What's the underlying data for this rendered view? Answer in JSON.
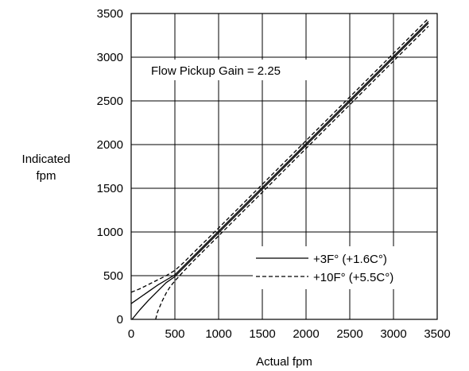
{
  "chart_data": {
    "type": "line",
    "title": "",
    "annotation": "Flow Pickup Gain = 2.25",
    "xlabel": "Actual fpm",
    "ylabel": [
      "Indicated",
      "fpm"
    ],
    "xlim": [
      0,
      3500
    ],
    "ylim": [
      0,
      3500
    ],
    "xticks": [
      0,
      500,
      1000,
      1500,
      2000,
      2500,
      3000,
      3500
    ],
    "yticks": [
      0,
      500,
      1000,
      1500,
      2000,
      2500,
      3000,
      3500
    ],
    "grid": true,
    "legend_position": "bottom-right",
    "series": [
      {
        "name": "+3F° (+1.6C°)",
        "style": "solid",
        "branch": "upper",
        "x": [
          0,
          100,
          200,
          300,
          400,
          500,
          600,
          1000,
          1500,
          2000,
          2500,
          3000,
          3400
        ],
        "y": [
          180,
          250,
          320,
          390,
          450,
          510,
          610,
          1010,
          1510,
          2010,
          2510,
          3010,
          3410
        ]
      },
      {
        "name": "+3F° (+1.6C°)",
        "style": "solid",
        "branch": "lower",
        "x": [
          10,
          100,
          200,
          300,
          400,
          500,
          600,
          1000,
          1500,
          2000,
          2500,
          3000,
          3400
        ],
        "y": [
          0,
          110,
          220,
          320,
          420,
          490,
          590,
          990,
          1490,
          1990,
          2490,
          2990,
          3390
        ]
      },
      {
        "name": "+10F° (+5.5C°)",
        "style": "dashed",
        "branch": "upper",
        "x": [
          0,
          100,
          200,
          300,
          400,
          500,
          600,
          700,
          1000,
          1500,
          2000,
          2500,
          3000,
          3400
        ],
        "y": [
          310,
          350,
          400,
          450,
          500,
          560,
          650,
          750,
          1045,
          1545,
          2045,
          2545,
          3045,
          3445
        ]
      },
      {
        "name": "+10F° (+5.5C°)",
        "style": "dashed",
        "branch": "lower",
        "x": [
          280,
          300,
          350,
          400,
          450,
          500,
          600,
          700,
          1000,
          1500,
          2000,
          2500,
          3000,
          3400
        ],
        "y": [
          0,
          80,
          200,
          300,
          380,
          440,
          550,
          655,
          955,
          1455,
          1955,
          2455,
          2955,
          3355
        ]
      }
    ]
  }
}
